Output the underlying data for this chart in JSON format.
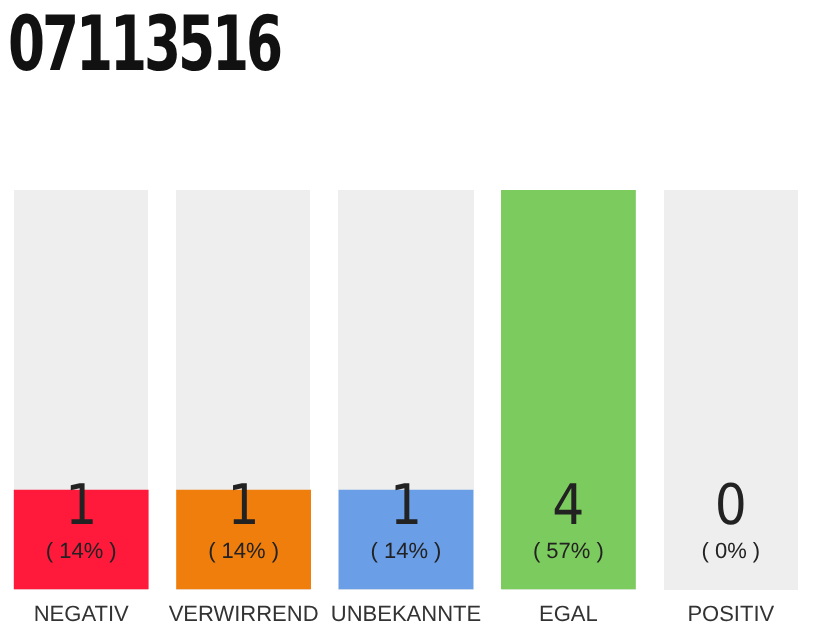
{
  "chart_data": {
    "type": "bar",
    "title": "07113516",
    "categories": [
      "NEGATIV",
      "VERWIRREND",
      "UNBEKANNTE",
      "EGAL",
      "POSITIV"
    ],
    "values": [
      1,
      1,
      1,
      4,
      0
    ],
    "colors": [
      "#ff1a3c",
      "#f07e0c",
      "#6a9fe8",
      "#7ccb5e",
      "#7ccb5e"
    ],
    "value_labels": [
      "1\n( 14% )",
      "1\n( 14% )",
      "1\n( 14% )",
      "4\n( 57% )",
      "0\n( 0% )"
    ],
    "ylim": [
      0,
      4
    ],
    "grid": false,
    "legend": false,
    "tick_labels": "x"
  }
}
